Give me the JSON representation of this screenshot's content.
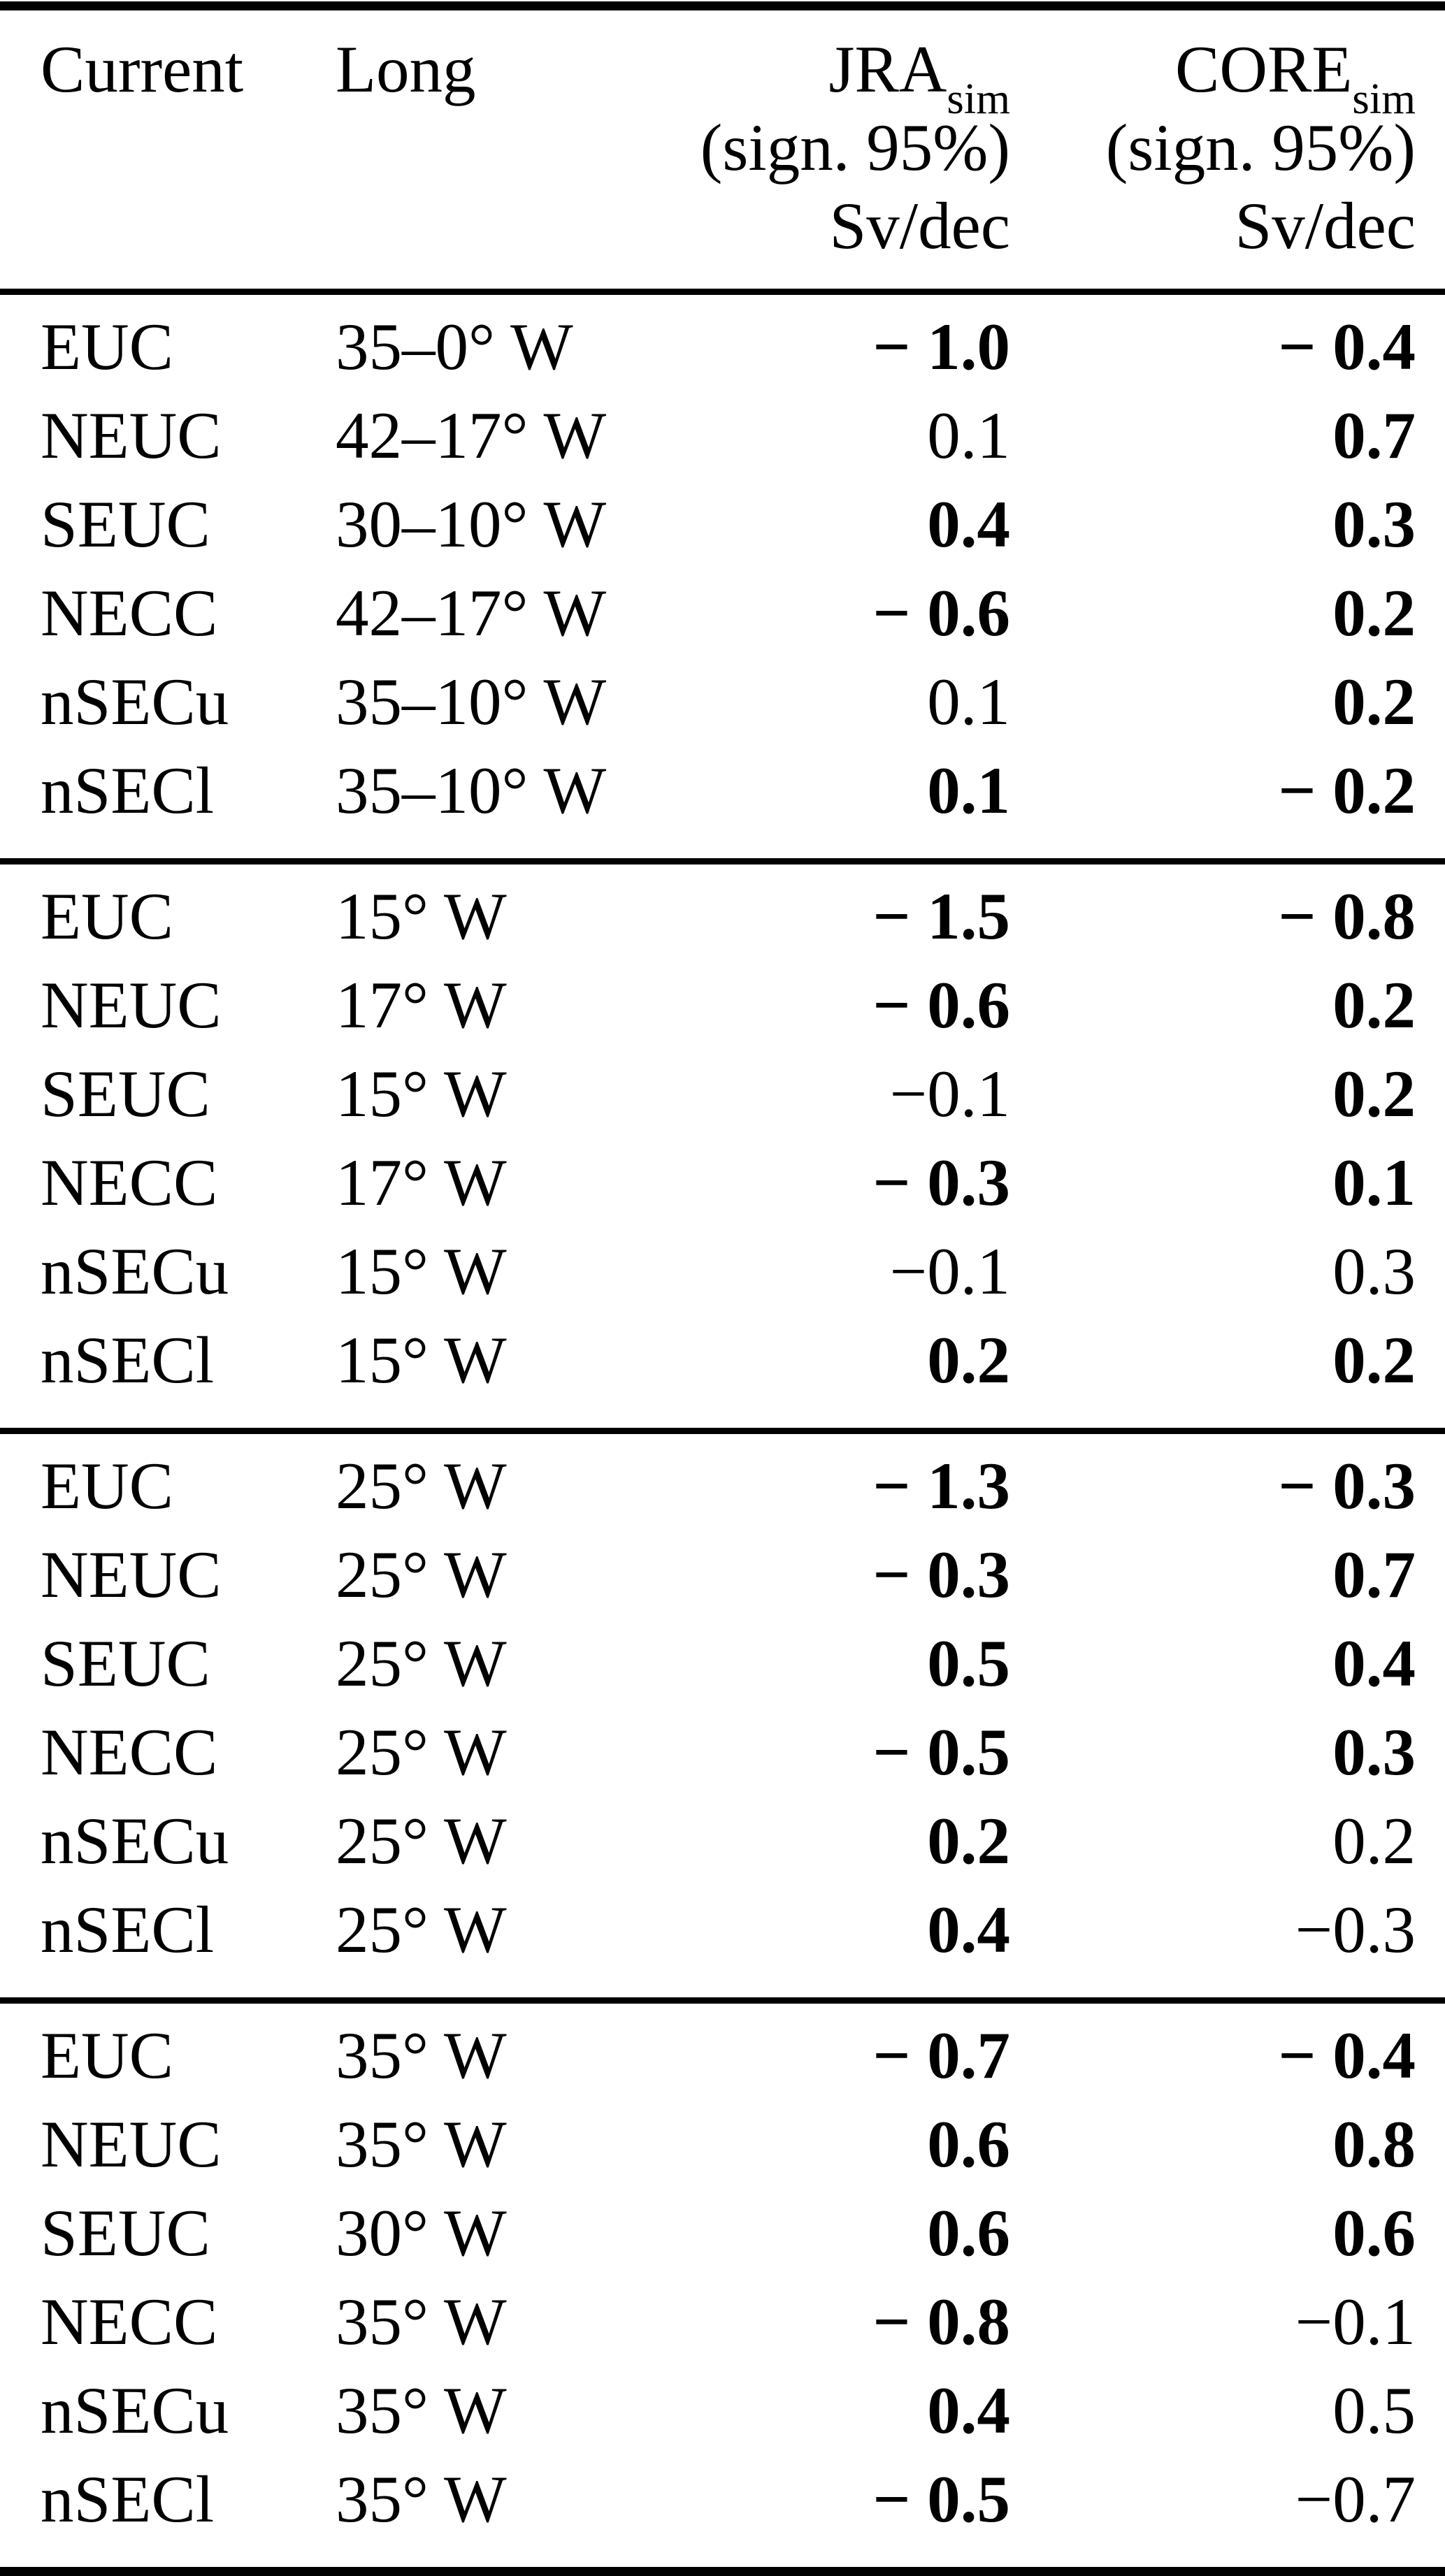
{
  "colors": {
    "text": "#000000",
    "background": "#ffffff",
    "rule": "#000000"
  },
  "header": {
    "col1": "Current",
    "col2": "Long",
    "col3": {
      "name": "JRA",
      "sub": "sim",
      "line2": "(sign. 95%)",
      "line3": "Sv/dec"
    },
    "col4": {
      "name": "CORE",
      "sub": "sim",
      "line2": "(sign. 95%)",
      "line3": "Sv/dec"
    }
  },
  "table": {
    "sections": [
      {
        "rows": [
          {
            "current": "EUC",
            "long": "35–0° W",
            "jra": "− 1.0",
            "jra_bold": true,
            "core": "− 0.4",
            "core_bold": true
          },
          {
            "current": "NEUC",
            "long": "42–17° W",
            "jra": "0.1",
            "jra_bold": false,
            "core": "0.7",
            "core_bold": true
          },
          {
            "current": "SEUC",
            "long": "30–10° W",
            "jra": "0.4",
            "jra_bold": true,
            "core": "0.3",
            "core_bold": true
          },
          {
            "current": "NECC",
            "long": "42–17° W",
            "jra": "− 0.6",
            "jra_bold": true,
            "core": "0.2",
            "core_bold": true
          },
          {
            "current": "nSECu",
            "long": "35–10° W",
            "jra": "0.1",
            "jra_bold": false,
            "core": "0.2",
            "core_bold": true
          },
          {
            "current": "nSECl",
            "long": "35–10° W",
            "jra": "0.1",
            "jra_bold": true,
            "core": "− 0.2",
            "core_bold": true
          }
        ]
      },
      {
        "rows": [
          {
            "current": "EUC",
            "long": "15° W",
            "jra": "− 1.5",
            "jra_bold": true,
            "core": "− 0.8",
            "core_bold": true
          },
          {
            "current": "NEUC",
            "long": "17° W",
            "jra": "− 0.6",
            "jra_bold": true,
            "core": "0.2",
            "core_bold": true
          },
          {
            "current": "SEUC",
            "long": "15° W",
            "jra": "−0.1",
            "jra_bold": false,
            "core": "0.2",
            "core_bold": true
          },
          {
            "current": "NECC",
            "long": "17° W",
            "jra": "− 0.3",
            "jra_bold": true,
            "core": "0.1",
            "core_bold": true
          },
          {
            "current": "nSECu",
            "long": "15° W",
            "jra": "−0.1",
            "jra_bold": false,
            "core": "0.3",
            "core_bold": false
          },
          {
            "current": "nSECl",
            "long": "15° W",
            "jra": "0.2",
            "jra_bold": true,
            "core": "0.2",
            "core_bold": true
          }
        ]
      },
      {
        "rows": [
          {
            "current": "EUC",
            "long": "25° W",
            "jra": "− 1.3",
            "jra_bold": true,
            "core": "− 0.3",
            "core_bold": true
          },
          {
            "current": "NEUC",
            "long": "25° W",
            "jra": "− 0.3",
            "jra_bold": true,
            "core": "0.7",
            "core_bold": true
          },
          {
            "current": "SEUC",
            "long": "25° W",
            "jra": "0.5",
            "jra_bold": true,
            "core": "0.4",
            "core_bold": true
          },
          {
            "current": "NECC",
            "long": "25° W",
            "jra": "− 0.5",
            "jra_bold": true,
            "core": "0.3",
            "core_bold": true
          },
          {
            "current": "nSECu",
            "long": "25° W",
            "jra": "0.2",
            "jra_bold": true,
            "core": "0.2",
            "core_bold": false
          },
          {
            "current": "nSECl",
            "long": "25° W",
            "jra": "0.4",
            "jra_bold": true,
            "core": "−0.3",
            "core_bold": false
          }
        ]
      },
      {
        "rows": [
          {
            "current": "EUC",
            "long": "35° W",
            "jra": "− 0.7",
            "jra_bold": true,
            "core": "− 0.4",
            "core_bold": true
          },
          {
            "current": "NEUC",
            "long": "35° W",
            "jra": "0.6",
            "jra_bold": true,
            "core": "0.8",
            "core_bold": true
          },
          {
            "current": "SEUC",
            "long": "30° W",
            "jra": "0.6",
            "jra_bold": true,
            "core": "0.6",
            "core_bold": true
          },
          {
            "current": "NECC",
            "long": "35° W",
            "jra": "− 0.8",
            "jra_bold": true,
            "core": "−0.1",
            "core_bold": false
          },
          {
            "current": "nSECu",
            "long": "35° W",
            "jra": "0.4",
            "jra_bold": true,
            "core": "0.5",
            "core_bold": false
          },
          {
            "current": "nSECl",
            "long": "35° W",
            "jra": "− 0.5",
            "jra_bold": true,
            "core": "−0.7",
            "core_bold": false
          }
        ]
      }
    ]
  }
}
